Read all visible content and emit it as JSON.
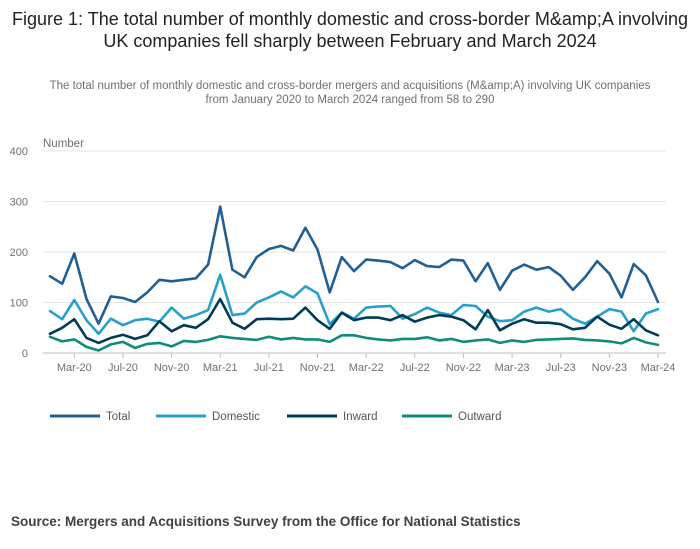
{
  "title": "Figure 1: The total number of monthly domestic and cross-border M&amp;A involving UK companies fell sharply between February and March 2024",
  "subtitle": "The total number of monthly domestic and cross-border mergers and acquisitions (M&amp;A) involving UK companies from January 2020 to March 2024 ranged from 58 to 290",
  "source": "Source: Mergers and Acquisitions Survey from the Office for National Statistics",
  "chart_data": {
    "type": "line",
    "title": "Figure 1: The total number of monthly domestic and cross-border M&amp;A involving UK companies fell sharply between February and March 2024",
    "ylabel": "Number",
    "xlabel": "",
    "ylim": [
      0,
      400
    ],
    "yticks": [
      0,
      100,
      200,
      300,
      400
    ],
    "grid": true,
    "legend_position": "bottom",
    "x": [
      "Jan-20",
      "Feb-20",
      "Mar-20",
      "Apr-20",
      "May-20",
      "Jun-20",
      "Jul-20",
      "Aug-20",
      "Sep-20",
      "Oct-20",
      "Nov-20",
      "Dec-20",
      "Jan-21",
      "Feb-21",
      "Mar-21",
      "Apr-21",
      "May-21",
      "Jun-21",
      "Jul-21",
      "Aug-21",
      "Sep-21",
      "Oct-21",
      "Nov-21",
      "Dec-21",
      "Jan-22",
      "Feb-22",
      "Mar-22",
      "Apr-22",
      "May-22",
      "Jun-22",
      "Jul-22",
      "Aug-22",
      "Sep-22",
      "Oct-22",
      "Nov-22",
      "Dec-22",
      "Jan-23",
      "Feb-23",
      "Mar-23",
      "Apr-23",
      "May-23",
      "Jun-23",
      "Jul-23",
      "Aug-23",
      "Sep-23",
      "Oct-23",
      "Nov-23",
      "Dec-23",
      "Jan-24",
      "Feb-24",
      "Mar-24"
    ],
    "xtick_labels": [
      "Mar-20",
      "Jul-20",
      "Nov-20",
      "Mar-21",
      "Jul-21",
      "Nov-21",
      "Mar-22",
      "Jul-22",
      "Nov-22",
      "Mar-23",
      "Jul-23",
      "Nov-23",
      "Mar-24"
    ],
    "series": [
      {
        "name": "Total",
        "color": "#206095",
        "values": [
          152,
          137,
          197,
          107,
          58,
          112,
          109,
          101,
          120,
          145,
          142,
          145,
          148,
          175,
          290,
          165,
          150,
          190,
          206,
          212,
          203,
          248,
          205,
          120,
          190,
          162,
          185,
          183,
          180,
          168,
          184,
          172,
          170,
          185,
          183,
          142,
          178,
          125,
          163,
          175,
          165,
          170,
          153,
          125,
          150,
          182,
          157,
          110,
          176,
          154,
          101
        ]
      },
      {
        "name": "Domestic",
        "color": "#27A0CC",
        "values": [
          83,
          67,
          105,
          65,
          38,
          68,
          55,
          65,
          68,
          62,
          90,
          68,
          75,
          85,
          155,
          75,
          78,
          100,
          110,
          122,
          110,
          132,
          118,
          57,
          80,
          68,
          90,
          92,
          93,
          68,
          77,
          90,
          80,
          75,
          95,
          93,
          72,
          63,
          65,
          82,
          90,
          82,
          87,
          68,
          58,
          72,
          87,
          82,
          43,
          78,
          87
        ]
      },
      {
        "name": "Inward",
        "color": "#003C57",
        "values": [
          38,
          50,
          67,
          30,
          20,
          30,
          36,
          28,
          35,
          63,
          43,
          55,
          50,
          67,
          107,
          60,
          48,
          67,
          68,
          67,
          68,
          90,
          65,
          48,
          80,
          65,
          70,
          70,
          65,
          75,
          62,
          70,
          75,
          72,
          65,
          47,
          85,
          45,
          58,
          67,
          60,
          60,
          57,
          47,
          50,
          72,
          56,
          48,
          67,
          45,
          35
        ]
      },
      {
        "name": "Outward",
        "color": "#118C7B",
        "values": [
          32,
          23,
          27,
          12,
          5,
          17,
          22,
          10,
          18,
          20,
          13,
          24,
          22,
          26,
          33,
          30,
          28,
          26,
          32,
          27,
          30,
          27,
          27,
          22,
          35,
          35,
          30,
          27,
          25,
          28,
          28,
          31,
          25,
          28,
          22,
          25,
          27,
          20,
          25,
          22,
          26,
          27,
          28,
          29,
          26,
          25,
          23,
          19,
          30,
          21,
          16
        ]
      }
    ]
  }
}
